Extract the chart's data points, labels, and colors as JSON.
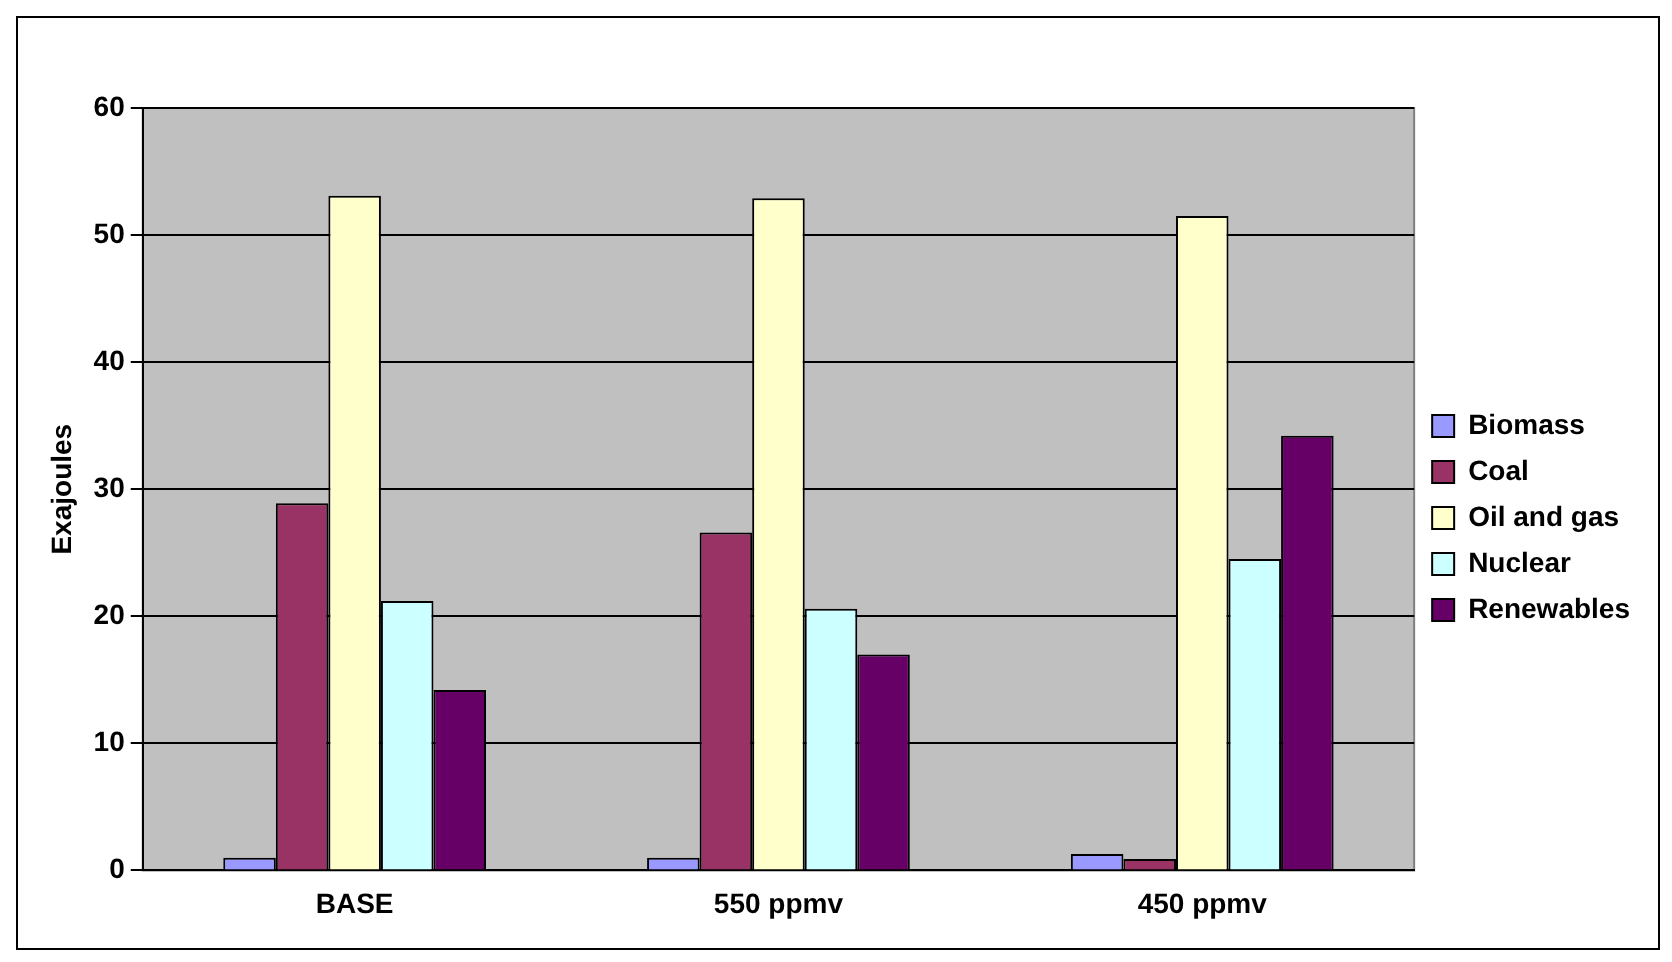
{
  "chart_data": {
    "type": "bar",
    "ylabel": "Exajoules",
    "categories": [
      "BASE",
      "550 ppmv",
      "450 ppmv"
    ],
    "series": [
      {
        "name": "Biomass",
        "color": "#9999ff",
        "values": [
          1.0,
          1.0,
          1.3
        ]
      },
      {
        "name": "Coal",
        "color": "#993366",
        "values": [
          28.9,
          26.6,
          0.9
        ]
      },
      {
        "name": "Oil and gas",
        "color": "#ffffcc",
        "values": [
          53.1,
          52.9,
          51.5
        ]
      },
      {
        "name": "Nuclear",
        "color": "#ccffff",
        "values": [
          21.2,
          20.6,
          24.5
        ]
      },
      {
        "name": "Renewables",
        "color": "#660066",
        "values": [
          14.2,
          17.0,
          34.2
        ]
      }
    ],
    "ylim": [
      0,
      60
    ],
    "yticks": [
      0,
      10,
      20,
      30,
      40,
      50,
      60
    ],
    "grid": "y",
    "legend": "right"
  }
}
